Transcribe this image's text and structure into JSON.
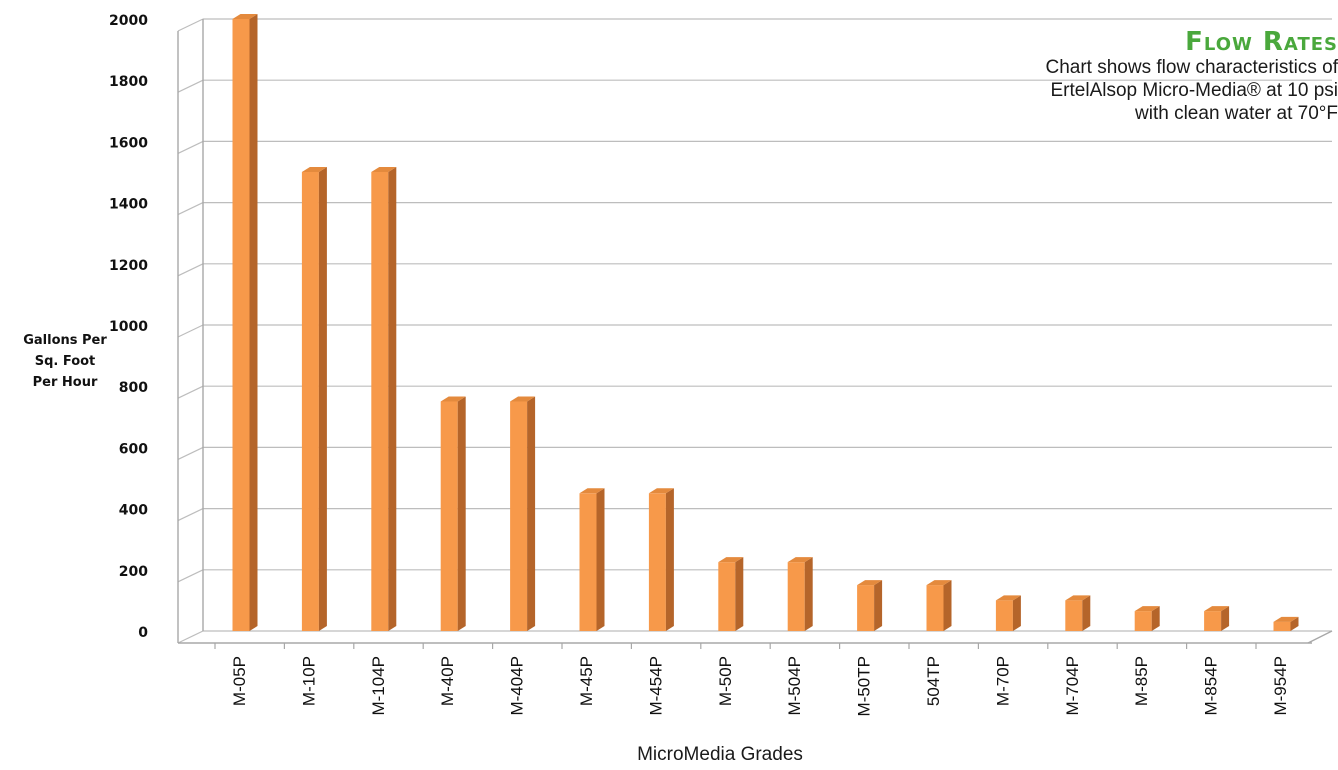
{
  "chart_data": {
    "type": "bar",
    "title": "Flow Rates",
    "subtitle_lines": [
      "Chart shows flow characteristics of",
      "ErtelAlsop Micro-Media® at 10 psi",
      "with clean water at 70°F"
    ],
    "ylabel_lines": [
      "Gallons Per",
      "Sq. Foot",
      "Per Hour"
    ],
    "xlabel": "MicroMedia Grades",
    "categories": [
      "M-05P",
      "M-10P",
      "M-104P",
      "M-40P",
      "M-404P",
      "M-45P",
      "M-454P",
      "M-50P",
      "M-504P",
      "M-50TP",
      "504TP",
      "M-70P",
      "M-704P",
      "M-85P",
      "M-854P",
      "M-954P"
    ],
    "values": [
      2000,
      1500,
      1500,
      750,
      750,
      450,
      450,
      225,
      225,
      150,
      150,
      100,
      100,
      65,
      65,
      30
    ],
    "ylim": [
      0,
      2000
    ],
    "yticks": [
      0,
      200,
      400,
      600,
      800,
      1000,
      1200,
      1400,
      1600,
      1800,
      2000
    ],
    "grid": true,
    "legend": "none",
    "bar_color": "#f7994a",
    "bar_side_color": "#b5652a",
    "bar_top_color": "#e48a3d"
  }
}
